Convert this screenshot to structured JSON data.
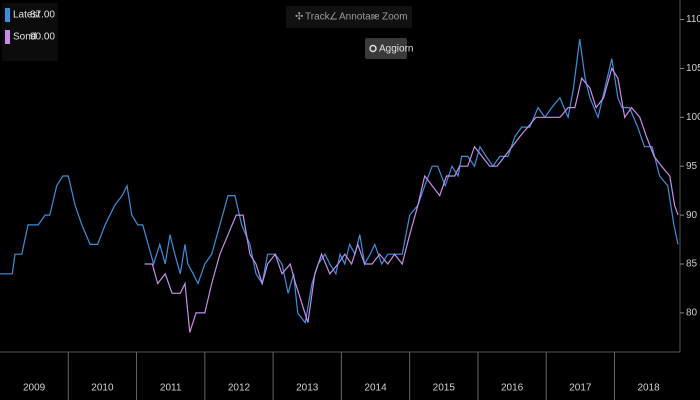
{
  "chart_data": {
    "type": "line",
    "toolbar": {
      "items": [
        "Track",
        "Annotare",
        "Zoom"
      ],
      "button": "Aggiorn"
    },
    "xlim": [
      2009.0,
      2018.93
    ],
    "xticks": [
      {
        "value": 2009.5,
        "label": "2009"
      },
      {
        "value": 2010.5,
        "label": "2010"
      },
      {
        "value": 2011.5,
        "label": "2011"
      },
      {
        "value": 2012.5,
        "label": "2012"
      },
      {
        "value": 2013.5,
        "label": "2013"
      },
      {
        "value": 2014.5,
        "label": "2014"
      },
      {
        "value": 2015.5,
        "label": "2015"
      },
      {
        "value": 2016.5,
        "label": "2016"
      },
      {
        "value": 2017.5,
        "label": "2017"
      },
      {
        "value": 2018.5,
        "label": "2018"
      }
    ],
    "ylim": [
      76,
      112
    ],
    "yticks": [
      80,
      85,
      90,
      95,
      100,
      105,
      110
    ],
    "series": [
      {
        "name": "Latest",
        "legend_value": "87.00",
        "color": "#3d8fdc",
        "x": [
          2009.0,
          2009.18,
          2009.22,
          2009.32,
          2009.41,
          2009.56,
          2009.66,
          2009.73,
          2009.83,
          2009.92,
          2010.0,
          2010.1,
          2010.2,
          2010.32,
          2010.43,
          2010.54,
          2010.68,
          2010.79,
          2010.86,
          2010.93,
          2011.02,
          2011.09,
          2011.17,
          2011.25,
          2011.34,
          2011.42,
          2011.49,
          2011.56,
          2011.64,
          2011.71,
          2011.75,
          2011.83,
          2011.9,
          2012.0,
          2012.1,
          2012.22,
          2012.34,
          2012.44,
          2012.54,
          2012.66,
          2012.75,
          2012.84,
          2012.92,
          2013.03,
          2013.13,
          2013.22,
          2013.3,
          2013.36,
          2013.47,
          2013.57,
          2013.66,
          2013.76,
          2013.83,
          2013.92,
          2013.98,
          2014.05,
          2014.12,
          2014.2,
          2014.27,
          2014.34,
          2014.42,
          2014.49,
          2014.59,
          2014.68,
          2014.78,
          2014.89,
          2015.0,
          2015.12,
          2015.22,
          2015.33,
          2015.41,
          2015.52,
          2015.62,
          2015.71,
          2015.76,
          2015.85,
          2015.95,
          2016.03,
          2016.12,
          2016.22,
          2016.32,
          2016.44,
          2016.54,
          2016.64,
          2016.76,
          2016.88,
          2016.98,
          2017.08,
          2017.2,
          2017.32,
          2017.4,
          2017.49,
          2017.57,
          2017.64,
          2017.76,
          2017.86,
          2017.96,
          2018.05,
          2018.11,
          2018.22,
          2018.34,
          2018.44,
          2018.55,
          2018.66,
          2018.78,
          2018.87,
          2018.93
        ],
        "values": [
          84,
          84,
          86,
          86,
          89,
          89,
          90,
          90,
          93,
          94,
          94,
          91,
          89,
          87,
          87,
          89,
          91,
          92,
          93,
          90,
          89,
          89,
          87,
          85,
          87,
          85,
          88,
          86,
          84,
          87,
          85,
          84,
          83,
          85,
          86,
          89,
          92,
          92,
          89,
          87,
          84,
          83,
          86,
          86,
          85,
          82,
          84,
          80,
          79,
          83,
          85,
          86,
          85,
          84,
          86,
          85,
          87,
          86,
          88,
          85,
          86,
          87,
          85,
          86,
          86,
          86,
          90,
          91,
          93,
          95,
          95,
          93,
          95,
          94,
          96,
          96,
          95,
          97,
          96,
          95,
          96,
          96,
          98,
          99,
          99,
          101,
          100,
          101,
          102,
          100,
          103,
          108,
          104,
          102,
          100,
          103,
          106,
          102,
          101,
          101,
          99,
          97,
          97,
          94,
          93,
          89,
          87
        ]
      },
      {
        "name": "Sond",
        "legend_value": "90.00",
        "color": "#c98ce8",
        "x": [
          2011.12,
          2011.23,
          2011.31,
          2011.42,
          2011.52,
          2011.64,
          2011.71,
          2011.78,
          2011.87,
          2012.0,
          2012.1,
          2012.22,
          2012.34,
          2012.46,
          2012.56,
          2012.66,
          2012.75,
          2012.84,
          2012.92,
          2013.03,
          2013.13,
          2013.25,
          2013.33,
          2013.42,
          2013.51,
          2013.61,
          2013.71,
          2013.83,
          2013.95,
          2014.05,
          2014.15,
          2014.24,
          2014.34,
          2014.45,
          2014.56,
          2014.68,
          2014.78,
          2014.89,
          2015.0,
          2015.12,
          2015.22,
          2015.33,
          2015.44,
          2015.54,
          2015.66,
          2015.73,
          2015.85,
          2015.95,
          2016.06,
          2016.17,
          2016.28,
          2016.39,
          2016.5,
          2016.61,
          2016.73,
          2016.85,
          2016.96,
          2017.08,
          2017.2,
          2017.32,
          2017.42,
          2017.52,
          2017.64,
          2017.73,
          2017.84,
          2017.96,
          2018.05,
          2018.15,
          2018.25,
          2018.37,
          2018.47,
          2018.58,
          2018.69,
          2018.81,
          2018.88,
          2018.93
        ],
        "values": [
          85,
          85,
          83,
          84,
          82,
          82,
          83,
          78,
          80,
          80,
          83,
          86,
          88,
          90,
          90,
          86,
          85,
          83,
          85,
          86,
          84,
          85,
          83,
          81,
          79,
          84,
          86,
          84,
          85,
          86,
          85,
          87,
          85,
          85,
          86,
          85,
          86,
          85,
          88,
          91,
          94,
          93,
          92,
          94,
          94,
          95,
          95,
          97,
          96,
          95,
          95,
          96,
          97,
          98,
          99,
          100,
          100,
          100,
          100,
          101,
          101,
          104,
          103,
          101,
          102,
          105,
          104,
          100,
          101,
          100,
          98,
          96,
          95,
          94,
          91,
          90
        ]
      }
    ]
  }
}
